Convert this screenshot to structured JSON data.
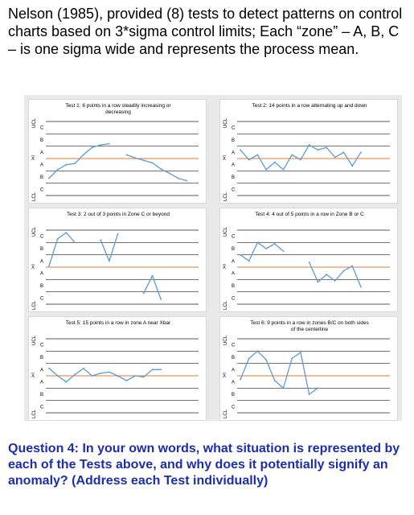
{
  "intro": "Nelson (1985), provided (8) tests to detect patterns on control charts based on 3*sigma control limits; Each “zone” – A, B, C – is one sigma wide and represents the process mean.",
  "question": "Question 4: In your own words, what situation is represented by each of the Tests above, and why does it potentially signify an anomaly? (Address each Test individually)",
  "labels": {
    "upper": "UCL",
    "center": "X̅",
    "lower": "LCL"
  },
  "colors": {
    "series": "#5b9bd5",
    "centerline": "#e07b39",
    "grid": "#000000",
    "panel_border": "#d9d9d9"
  },
  "panels": [
    {
      "title": [
        "Test 1: 6 points in a row steadily increasing or",
        "decreasing"
      ],
      "zones_top": [
        "C",
        "B",
        "A"
      ],
      "zones_bottom": [
        "A",
        "B",
        "C"
      ],
      "chart_data": {
        "type": "line",
        "ylim": [
          -3,
          3
        ],
        "segments": [
          [
            [
              1,
              -1.6
            ],
            [
              2,
              -0.9
            ],
            [
              3,
              -0.5
            ],
            [
              4,
              -0.4
            ],
            [
              5,
              0.3
            ],
            [
              6,
              0.9
            ],
            [
              7,
              1.1
            ],
            [
              8,
              1.2
            ]
          ],
          [
            [
              10,
              0.3
            ],
            [
              11,
              0.05
            ],
            [
              12,
              -0.15
            ],
            [
              13,
              -0.35
            ],
            [
              14,
              -0.85
            ],
            [
              15,
              -1.2
            ],
            [
              16,
              -1.6
            ],
            [
              17,
              -1.8
            ]
          ]
        ]
      }
    },
    {
      "title": [
        "Test 2: 14 points in a row alternating up and down"
      ],
      "zones_top": [
        "C",
        "B",
        "A"
      ],
      "zones_bottom": [
        "A",
        "B",
        "C"
      ],
      "chart_data": {
        "type": "line",
        "ylim": [
          -3,
          3
        ],
        "segments": [
          [
            [
              1,
              0.7
            ],
            [
              2,
              -0.1
            ],
            [
              3,
              0.3
            ],
            [
              4,
              -0.9
            ],
            [
              5,
              -0.3
            ],
            [
              6,
              -0.9
            ],
            [
              7,
              0.3
            ],
            [
              8,
              -0.1
            ],
            [
              9,
              1.1
            ],
            [
              10,
              0.7
            ],
            [
              11,
              0.9
            ],
            [
              12,
              0.1
            ],
            [
              13,
              0.5
            ],
            [
              14,
              -0.6
            ],
            [
              15,
              0.5
            ]
          ]
        ]
      }
    },
    {
      "title": [
        "Test 3: 2 out of 3 points in Zone C or beyond"
      ],
      "zones_top": [
        "C",
        "B",
        "A"
      ],
      "zones_bottom": [
        "A",
        "B",
        "C"
      ],
      "chart_data": {
        "type": "line",
        "ylim": [
          -3,
          3
        ],
        "segments": [
          [
            [
              1,
              0.1
            ],
            [
              2,
              2.3
            ],
            [
              3,
              2.8
            ],
            [
              4,
              2.0
            ]
          ],
          [
            [
              7,
              2.2
            ],
            [
              8,
              0.5
            ],
            [
              9,
              2.7
            ]
          ],
          [
            [
              12,
              -2.1
            ],
            [
              13,
              -0.7
            ],
            [
              14,
              -2.6
            ]
          ]
        ]
      }
    },
    {
      "title": [
        "Test 4: 4 out of 5 points in a row in Zone B or C"
      ],
      "zones_top": [
        "C",
        "B",
        "A"
      ],
      "zones_bottom": [
        "A",
        "B",
        "C"
      ],
      "chart_data": {
        "type": "line",
        "ylim": [
          -3,
          3
        ],
        "segments": [
          [
            [
              1,
              1.0
            ],
            [
              2,
              0.5
            ],
            [
              3,
              2.0
            ],
            [
              4,
              1.5
            ],
            [
              5,
              1.9
            ],
            [
              6,
              1.3
            ]
          ],
          [
            [
              9,
              0.4
            ],
            [
              10,
              -1.2
            ],
            [
              11,
              -0.6
            ],
            [
              12,
              -1.1
            ],
            [
              13,
              -0.3
            ],
            [
              14,
              0.1
            ],
            [
              15,
              -1.6
            ]
          ]
        ]
      }
    },
    {
      "title": [
        "Test 5: 15 points in a row in zone A near Xbar"
      ],
      "zones_top": [
        "C",
        "B",
        "A"
      ],
      "zones_bottom": [
        "A",
        "B",
        "C"
      ],
      "chart_data": {
        "type": "line",
        "ylim": [
          -3,
          3
        ],
        "segments": [
          [
            [
              1,
              0.6
            ],
            [
              2,
              0.0
            ],
            [
              3,
              -0.5
            ],
            [
              4,
              0.1
            ],
            [
              5,
              0.6
            ],
            [
              6,
              0.0
            ],
            [
              7,
              0.2
            ],
            [
              8,
              0.3
            ],
            [
              9,
              0.0
            ],
            [
              10,
              -0.4
            ],
            [
              11,
              0.0
            ],
            [
              12,
              -0.1
            ],
            [
              13,
              0.5
            ],
            [
              14,
              0.5
            ]
          ]
        ]
      }
    },
    {
      "title": [
        "Test 6: 9 points in a row in zones B/C on both sides",
        "of the centerline"
      ],
      "zones_top": [
        "C",
        "B",
        "A"
      ],
      "zones_bottom": [
        "A",
        "B",
        "C"
      ],
      "chart_data": {
        "type": "line",
        "ylim": [
          -3,
          3
        ],
        "segments": [
          [
            [
              1,
              -0.3
            ],
            [
              2,
              1.4
            ],
            [
              3,
              2.0
            ],
            [
              4,
              1.3
            ],
            [
              5,
              -0.4
            ],
            [
              6,
              -1.0
            ],
            [
              7,
              1.4
            ],
            [
              8,
              1.9
            ],
            [
              9,
              -1.5
            ],
            [
              10,
              -1.0
            ]
          ]
        ]
      }
    }
  ]
}
